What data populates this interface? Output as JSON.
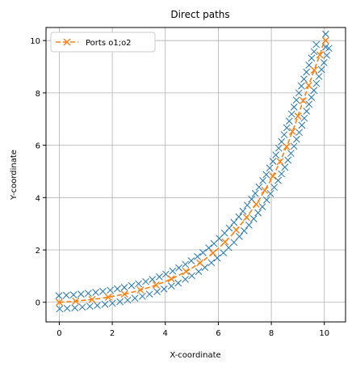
{
  "chart_data": {
    "type": "line",
    "title": "Direct paths",
    "xlabel": "X-coordinate",
    "ylabel": "Y-coordinate",
    "xlim": [
      -0.5,
      10.8
    ],
    "ylim": [
      -0.75,
      10.5
    ],
    "xticks": [
      0,
      2,
      4,
      6,
      8,
      10
    ],
    "yticks": [
      0,
      2,
      4,
      6,
      8,
      10
    ],
    "grid": true,
    "legend_position": "top-left",
    "colors": {
      "edges": "#1f77b4",
      "centerline": "#ff7f0e",
      "grid": "#b0b0b0"
    },
    "series": [
      {
        "name": "Ports o1;o2",
        "style": "dashed line with x markers",
        "x": [
          0,
          0.5,
          1,
          1.5,
          2,
          2.5,
          3,
          3.5,
          4,
          4.5,
          5,
          5.5,
          6,
          6.5,
          7,
          7.5,
          8,
          8.3,
          8.6,
          8.9,
          9.2,
          9.45,
          9.7,
          9.85,
          10,
          10.05
        ],
        "y": [
          0,
          0.03,
          0.08,
          0.14,
          0.22,
          0.32,
          0.45,
          0.6,
          0.79,
          1.02,
          1.3,
          1.64,
          2.05,
          2.55,
          3.15,
          3.85,
          4.7,
          5.3,
          6.0,
          6.8,
          7.7,
          8.4,
          9.1,
          9.5,
          10,
          10
        ]
      }
    ],
    "edge_markers": {
      "marker": "x",
      "offset": 0.25,
      "count_per_edge": 56
    }
  }
}
